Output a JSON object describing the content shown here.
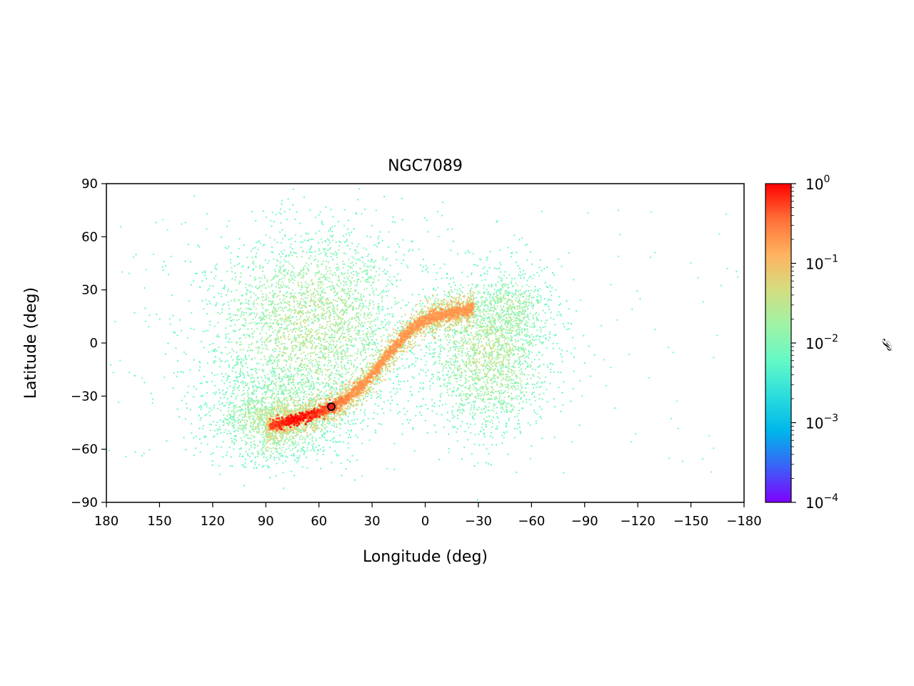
{
  "chart_data": {
    "type": "scatter",
    "title": "NGC7089",
    "xlabel": "Longitude (deg)",
    "ylabel": "Latitude (deg)",
    "xlim": [
      180,
      -180
    ],
    "ylim": [
      -90,
      90
    ],
    "xticks": [
      180,
      150,
      120,
      90,
      60,
      30,
      0,
      -30,
      -60,
      -90,
      -120,
      -150,
      -180
    ],
    "xtick_labels": [
      "180",
      "150",
      "120",
      "90",
      "60",
      "30",
      "0",
      "−30",
      "−60",
      "−90",
      "−120",
      "−150",
      "−180"
    ],
    "yticks": [
      90,
      60,
      30,
      0,
      -30,
      -60,
      -90
    ],
    "ytick_labels": [
      "90",
      "60",
      "30",
      "0",
      "−30",
      "−60",
      "−90"
    ],
    "colorbar": {
      "label": "𝒫",
      "scale": "log",
      "range": [
        0.0001,
        1
      ],
      "ticks": [
        {
          "value": 1,
          "base": "10",
          "exp": "0"
        },
        {
          "value": 0.1,
          "base": "10",
          "exp": "−1"
        },
        {
          "value": 0.01,
          "base": "10",
          "exp": "−2"
        },
        {
          "value": 0.001,
          "base": "10",
          "exp": "−3"
        },
        {
          "value": 0.0001,
          "base": "10",
          "exp": "−4"
        }
      ],
      "colormap": [
        "#7f00ff",
        "#3b61f7",
        "#00b5eb",
        "#2adddd",
        "#64f9c7",
        "#9ff3a6",
        "#d4dd80",
        "#ffb360",
        "#ff6f37",
        "#ff0000"
      ]
    },
    "cluster_marker": {
      "lon": 53,
      "lat": -36,
      "color": "#e8241c"
    },
    "stream_track": [
      {
        "lon": 90,
        "lat": -48
      },
      {
        "lon": 80,
        "lat": -45
      },
      {
        "lon": 70,
        "lat": -42
      },
      {
        "lon": 60,
        "lat": -39
      },
      {
        "lon": 53,
        "lat": -36
      },
      {
        "lon": 45,
        "lat": -32
      },
      {
        "lon": 38,
        "lat": -26
      },
      {
        "lon": 30,
        "lat": -18
      },
      {
        "lon": 22,
        "lat": -8
      },
      {
        "lon": 15,
        "lat": 0
      },
      {
        "lon": 8,
        "lat": 8
      },
      {
        "lon": 0,
        "lat": 13
      },
      {
        "lon": -10,
        "lat": 16
      },
      {
        "lon": -20,
        "lat": 18
      },
      {
        "lon": -28,
        "lat": 20
      }
    ],
    "debris_lobes": [
      {
        "lon": 65,
        "lat": 8,
        "sigma_lon": 28,
        "sigma_lat": 28,
        "weight": 0.45
      },
      {
        "lon": 85,
        "lat": -42,
        "sigma_lon": 18,
        "sigma_lat": 12,
        "weight": 0.2
      },
      {
        "lon": -35,
        "lat": -5,
        "sigma_lon": 18,
        "sigma_lat": 22,
        "weight": 0.3
      },
      {
        "lon": -50,
        "lat": 20,
        "sigma_lon": 10,
        "sigma_lat": 10,
        "weight": 0.05
      }
    ]
  }
}
